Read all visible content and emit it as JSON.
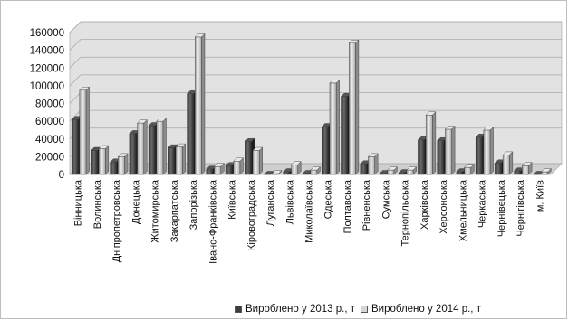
{
  "chart_data": {
    "type": "bar",
    "title": "",
    "xlabel": "",
    "ylabel": "",
    "ylim": [
      0,
      160000
    ],
    "yticks": [
      0,
      20000,
      40000,
      60000,
      80000,
      100000,
      120000,
      140000,
      160000
    ],
    "grid": true,
    "legend_position": "bottom",
    "categories": [
      "Вінницька",
      "Волинська",
      "Дніпропетровська",
      "Донецька",
      "Житомирська",
      "Закарпатська",
      "Запорізька",
      "Івано-Франківська",
      "Київська",
      "Кіровоградська",
      "Луганська",
      "Львівська",
      "Миколаївська",
      "Одеська",
      "Полтавська",
      "Рівненська",
      "Сумська",
      "Тернопільська",
      "Харківська",
      "Херсонська",
      "Хмельницька",
      "Черкаська",
      "Чернівецька",
      "Чернігівська",
      "м. Київ"
    ],
    "series": [
      {
        "name": "Вироблено у 2013 р., т",
        "color": "#3c3c3c",
        "values": [
          62000,
          27000,
          14000,
          46000,
          55000,
          30000,
          91000,
          6000,
          10000,
          37000,
          0,
          3000,
          1000,
          54000,
          88000,
          12000,
          1000,
          2000,
          39000,
          38000,
          3000,
          42000,
          13000,
          4000,
          0
        ]
      },
      {
        "name": "Вироблено у 2014 р., т",
        "color": "#bdbdbd",
        "values": [
          95000,
          29000,
          20000,
          58000,
          60000,
          31000,
          155000,
          9000,
          15000,
          27000,
          1000,
          11000,
          5000,
          103000,
          148000,
          20000,
          5000,
          5000,
          67000,
          51000,
          8000,
          50000,
          22000,
          10000,
          3000
        ]
      }
    ]
  }
}
